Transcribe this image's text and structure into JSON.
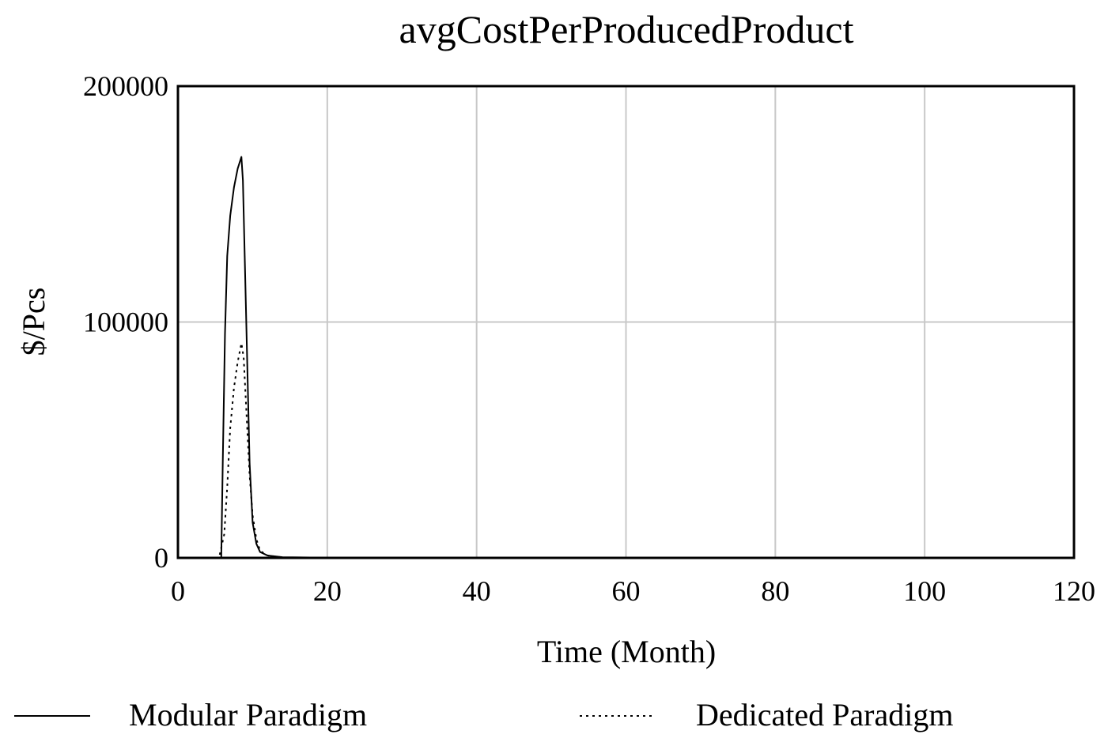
{
  "chart_data": {
    "type": "line",
    "title": "avgCostPerProducedProduct",
    "xlabel": "Time (Month)",
    "ylabel": "$/Pcs",
    "xlim": [
      0,
      120
    ],
    "ylim": [
      0,
      200000
    ],
    "x_ticks": [
      0,
      20,
      40,
      60,
      80,
      100,
      120
    ],
    "y_ticks": [
      0,
      100000,
      200000
    ],
    "x_tick_labels": [
      "0",
      "20",
      "40",
      "60",
      "80",
      "100",
      "120"
    ],
    "y_tick_labels": [
      "0",
      "100000",
      "200000"
    ],
    "grid": true,
    "legend_position": "bottom",
    "series": [
      {
        "name": "Modular Paradigm",
        "style": "solid",
        "color": "#000000",
        "points": [
          [
            0,
            0
          ],
          [
            5,
            0
          ],
          [
            5.8,
            0
          ],
          [
            6,
            40000
          ],
          [
            6.3,
            95000
          ],
          [
            6.6,
            128000
          ],
          [
            7,
            145000
          ],
          [
            7.5,
            157000
          ],
          [
            8,
            165000
          ],
          [
            8.5,
            170000
          ],
          [
            8.7,
            160000
          ],
          [
            9,
            120000
          ],
          [
            9.3,
            80000
          ],
          [
            9.6,
            40000
          ],
          [
            10,
            15000
          ],
          [
            10.5,
            6000
          ],
          [
            11,
            2500
          ],
          [
            12,
            1000
          ],
          [
            14,
            300
          ],
          [
            20,
            100
          ],
          [
            40,
            0
          ],
          [
            60,
            0
          ],
          [
            80,
            0
          ],
          [
            100,
            0
          ],
          [
            120,
            0
          ]
        ]
      },
      {
        "name": "Dedicated Paradigm",
        "style": "dotted",
        "color": "#000000",
        "points": [
          [
            0,
            0
          ],
          [
            5.5,
            0
          ],
          [
            6.2,
            10000
          ],
          [
            6.6,
            30000
          ],
          [
            7,
            55000
          ],
          [
            7.5,
            72000
          ],
          [
            8,
            83000
          ],
          [
            8.5,
            91000
          ],
          [
            8.8,
            85000
          ],
          [
            9.2,
            60000
          ],
          [
            9.6,
            35000
          ],
          [
            10,
            18000
          ],
          [
            10.5,
            8000
          ],
          [
            11,
            3000
          ],
          [
            12,
            1000
          ],
          [
            14,
            200
          ],
          [
            20,
            0
          ],
          [
            40,
            0
          ],
          [
            60,
            0
          ],
          [
            80,
            0
          ],
          [
            100,
            0
          ],
          [
            120,
            0
          ]
        ]
      }
    ]
  }
}
